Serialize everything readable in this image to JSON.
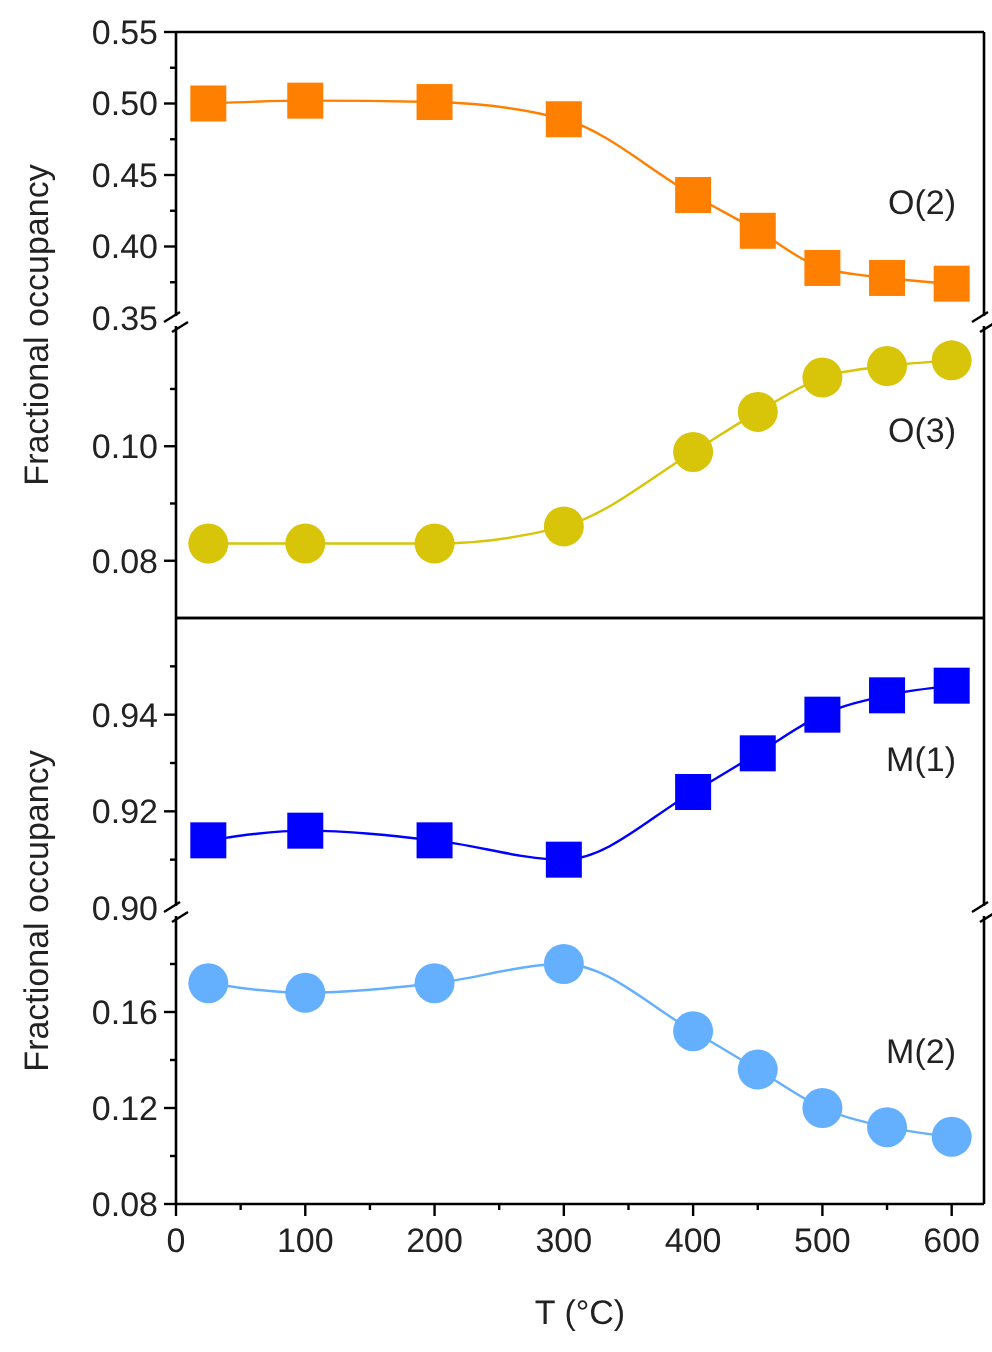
{
  "chart_data": [
    {
      "type": "line",
      "ylabel": "Fractional occupancy",
      "x": [
        25,
        100,
        200,
        300,
        400,
        450,
        500,
        550,
        600
      ],
      "xlim": [
        0,
        625
      ],
      "ylim": [
        0.35,
        0.55
      ],
      "yticks": [
        {
          "value": 0.35,
          "label": "0.35"
        },
        {
          "value": 0.375,
          "label": null
        },
        {
          "value": 0.4,
          "label": "0.40"
        },
        {
          "value": 0.425,
          "label": null
        },
        {
          "value": 0.45,
          "label": "0.45"
        },
        {
          "value": 0.475,
          "label": null
        },
        {
          "value": 0.5,
          "label": "0.50"
        },
        {
          "value": 0.525,
          "label": null
        },
        {
          "value": 0.55,
          "label": "0.55"
        }
      ],
      "tick_labels": "y",
      "marker": "square",
      "grid": false,
      "series": [
        {
          "name": "O(2)",
          "color": "#ff8000",
          "values": [
            0.5,
            0.502,
            0.501,
            0.489,
            0.436,
            0.411,
            0.385,
            0.378,
            0.374
          ]
        }
      ]
    },
    {
      "type": "line",
      "x": [
        25,
        100,
        200,
        300,
        400,
        450,
        500,
        550,
        600
      ],
      "xlim": [
        0,
        625
      ],
      "ylim": [
        0.07,
        0.121
      ],
      "yticks": [
        {
          "value": 0.08,
          "label": "0.08"
        },
        {
          "value": 0.09,
          "label": null
        },
        {
          "value": 0.1,
          "label": "0.10"
        },
        {
          "value": 0.11,
          "label": null
        }
      ],
      "tick_labels": "y",
      "marker": "circle",
      "grid": false,
      "series": [
        {
          "name": "O(3)",
          "color": "#d8c408",
          "values": [
            0.083,
            0.083,
            0.083,
            0.086,
            0.099,
            0.106,
            0.112,
            0.114,
            0.115
          ]
        }
      ]
    },
    {
      "type": "line",
      "ylabel": "Fractional occupancy",
      "x": [
        25,
        100,
        200,
        300,
        400,
        450,
        500,
        550,
        600
      ],
      "xlim": [
        0,
        625
      ],
      "ylim": [
        0.9,
        0.96
      ],
      "yticks": [
        {
          "value": 0.9,
          "label": "0.90"
        },
        {
          "value": 0.91,
          "label": null
        },
        {
          "value": 0.92,
          "label": "0.92"
        },
        {
          "value": 0.93,
          "label": null
        },
        {
          "value": 0.94,
          "label": "0.94"
        },
        {
          "value": 0.95,
          "label": null
        }
      ],
      "tick_labels": "y",
      "marker": "square",
      "grid": false,
      "series": [
        {
          "name": "M(1)",
          "color": "#0000ff",
          "values": [
            0.914,
            0.916,
            0.914,
            0.91,
            0.924,
            0.932,
            0.94,
            0.944,
            0.946
          ]
        }
      ]
    },
    {
      "type": "line",
      "xlabel": "T (°C)",
      "x": [
        25,
        100,
        200,
        300,
        400,
        450,
        500,
        550,
        600
      ],
      "xlim": [
        0,
        625
      ],
      "xticks": [
        0,
        {
          "value": 50,
          "label": null
        },
        100,
        {
          "value": 150,
          "label": null
        },
        200,
        {
          "value": 250,
          "label": null
        },
        300,
        {
          "value": 350,
          "label": null
        },
        400,
        {
          "value": 450,
          "label": null
        },
        500,
        {
          "value": 550,
          "label": null
        },
        600
      ],
      "ylim": [
        0.08,
        0.2
      ],
      "yticks": [
        {
          "value": 0.08,
          "label": "0.08"
        },
        {
          "value": 0.1,
          "label": null
        },
        {
          "value": 0.12,
          "label": "0.12"
        },
        {
          "value": 0.14,
          "label": null
        },
        {
          "value": 0.16,
          "label": "0.16"
        },
        {
          "value": 0.18,
          "label": null
        }
      ],
      "marker": "circle",
      "grid": false,
      "series": [
        {
          "name": "M(2)",
          "color": "#64b0ff",
          "values": [
            0.172,
            0.168,
            0.172,
            0.18,
            0.152,
            0.136,
            0.12,
            0.112,
            0.108
          ]
        }
      ]
    }
  ]
}
